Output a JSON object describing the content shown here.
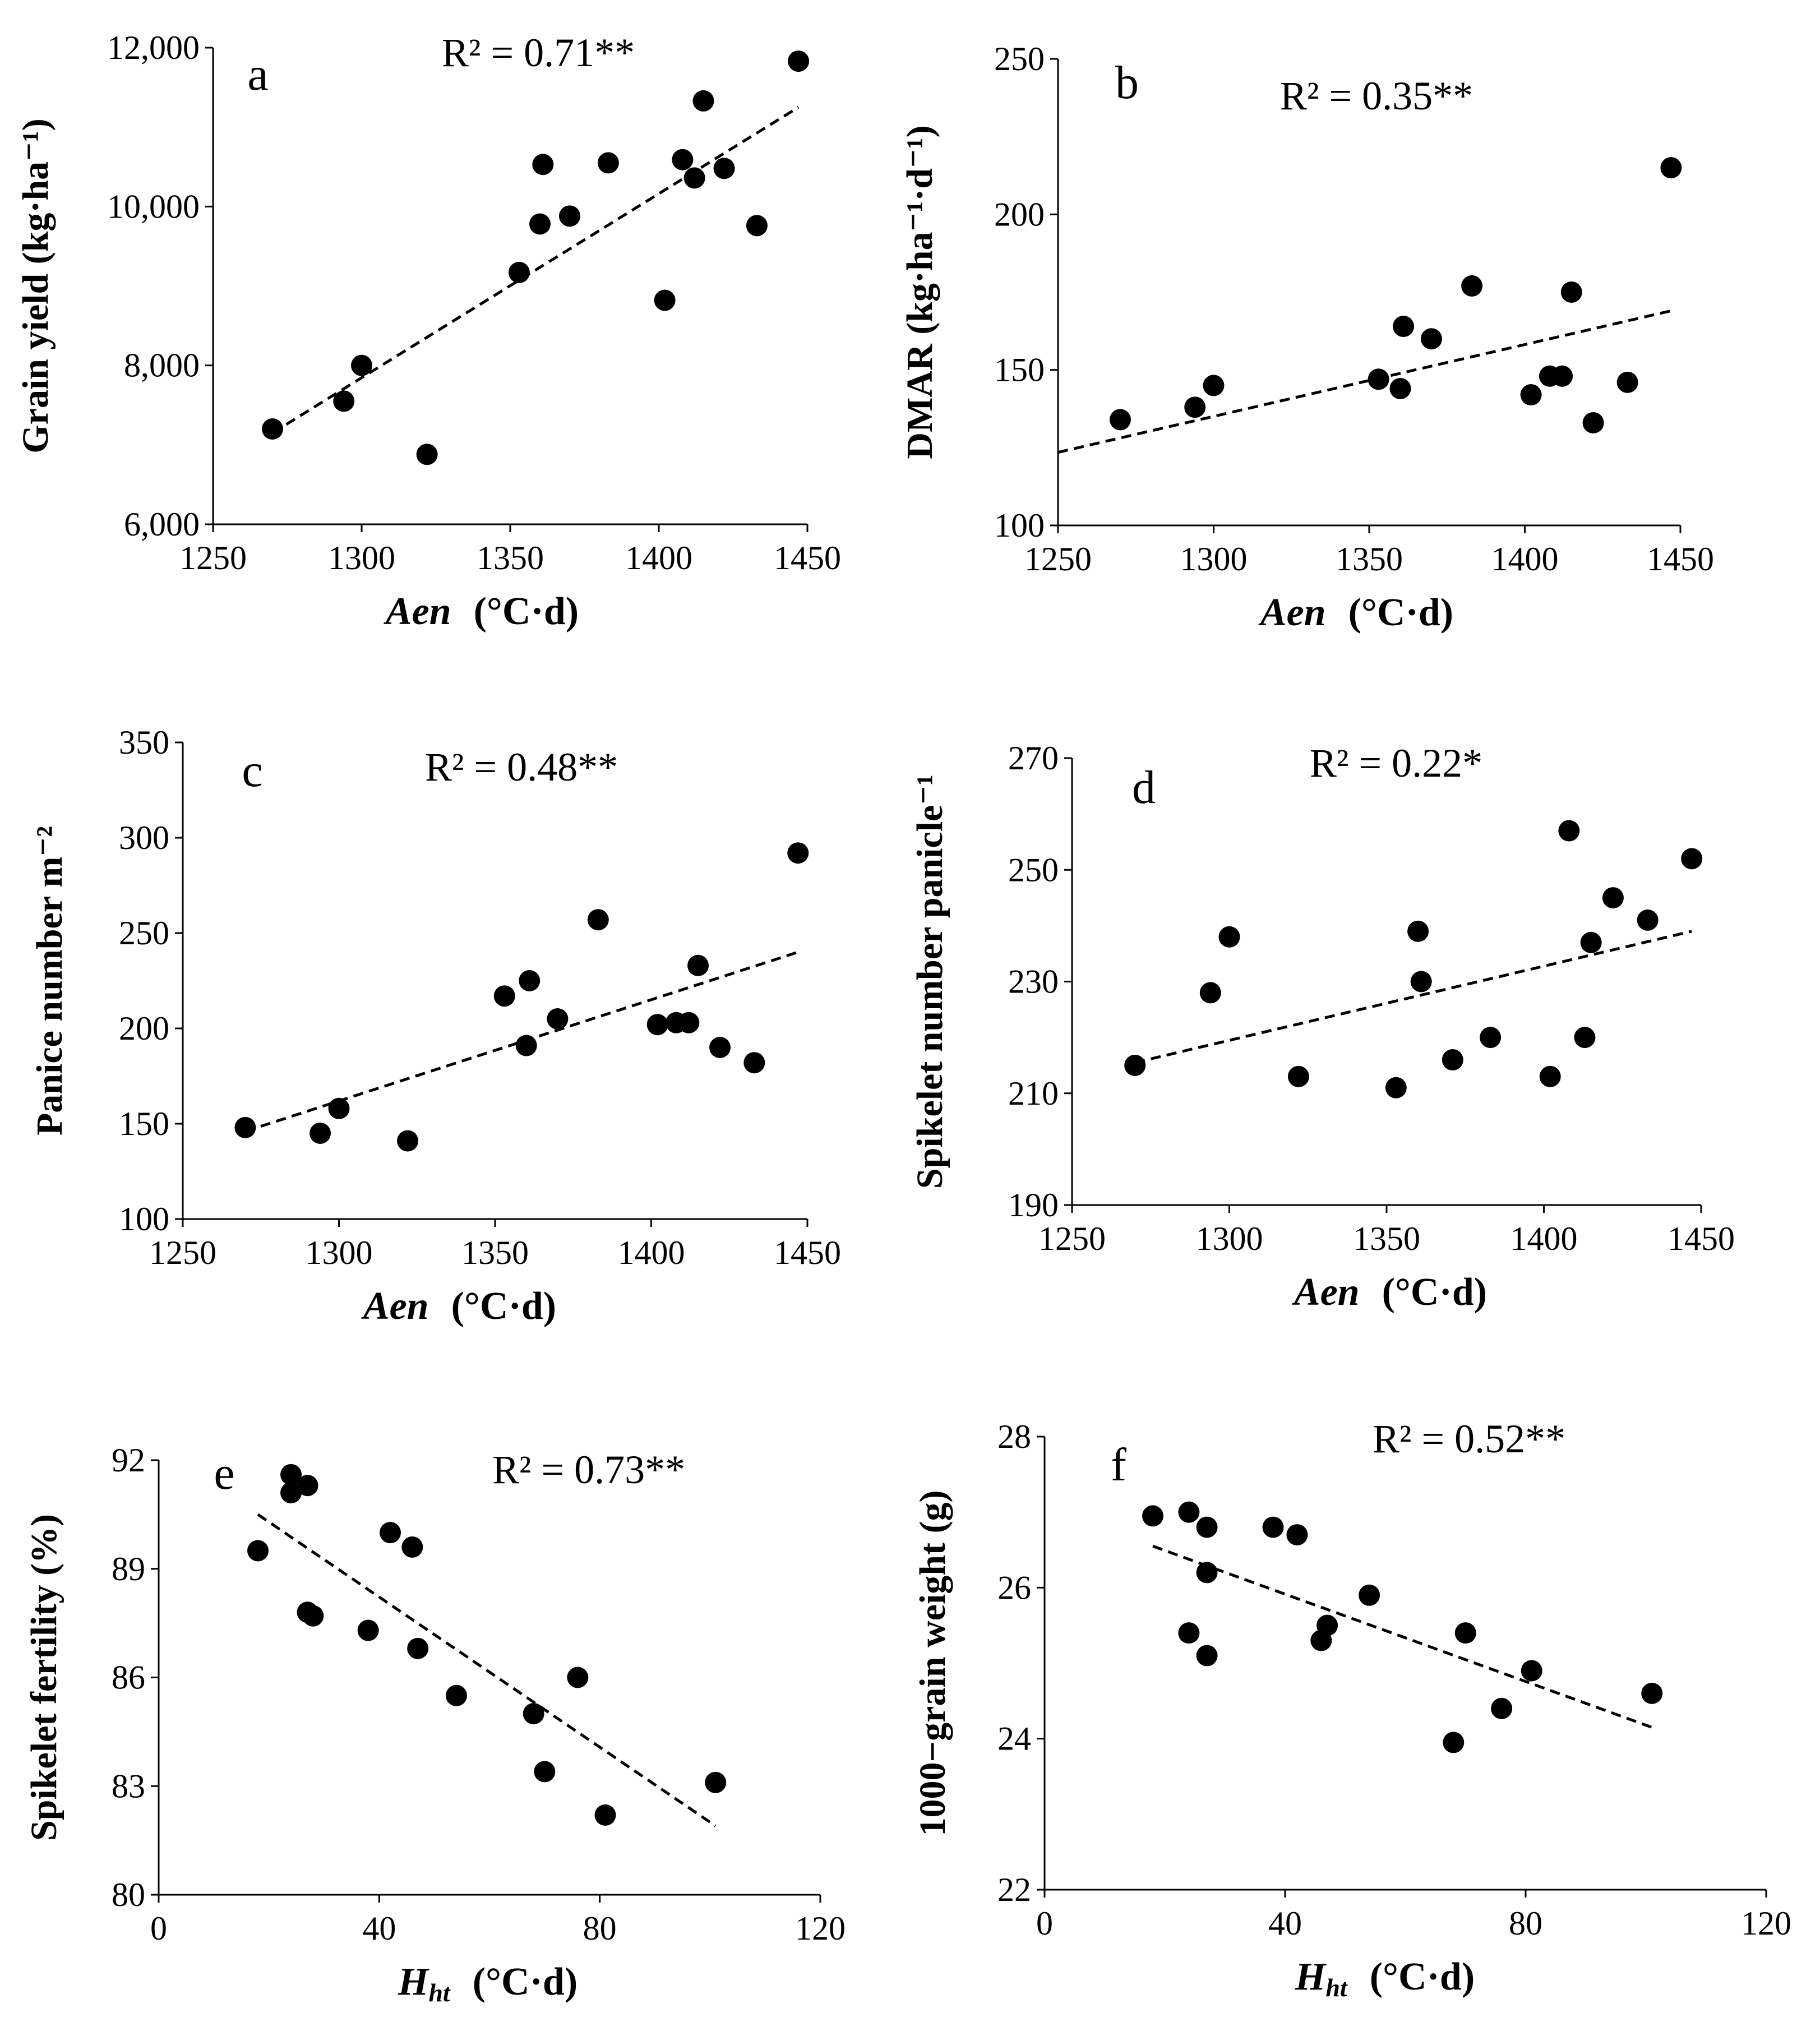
{
  "chart_data": [
    {
      "id": "a",
      "type": "scatter",
      "letter": "a",
      "r2": "R² = 0.71**",
      "xlabel_var": "Aen",
      "xlabel_sub": "",
      "xlabel_unit": "(°C·d)",
      "ylabel": "Grain yield   (kg·ha⁻¹)",
      "xlim": [
        1250,
        1450
      ],
      "ylim": [
        6000,
        12000
      ],
      "xticks": [
        1250,
        1300,
        1350,
        1400,
        1450
      ],
      "yticks": [
        6000,
        8000,
        10000,
        12000
      ],
      "ytick_labels": [
        "6,000",
        "8,000",
        "10,000",
        "12,000"
      ],
      "points": [
        [
          1270,
          7200
        ],
        [
          1294,
          7550
        ],
        [
          1300,
          8000
        ],
        [
          1322,
          6880
        ],
        [
          1353,
          9170
        ],
        [
          1360,
          9780
        ],
        [
          1361,
          10530
        ],
        [
          1370,
          9880
        ],
        [
          1383,
          10550
        ],
        [
          1402,
          8820
        ],
        [
          1408,
          10590
        ],
        [
          1412,
          10360
        ],
        [
          1415,
          11330
        ],
        [
          1422,
          10480
        ],
        [
          1433,
          9760
        ],
        [
          1447,
          11830
        ]
      ],
      "trend": [
        [
          1270,
          7150
        ],
        [
          1447,
          11250
        ]
      ]
    },
    {
      "id": "b",
      "type": "scatter",
      "letter": "b",
      "r2": "R² = 0.35**",
      "xlabel_var": "Aen",
      "xlabel_sub": "",
      "xlabel_unit": "(°C·d)",
      "ylabel": "DMAR   (kg·ha⁻¹·d⁻¹)",
      "xlim": [
        1250,
        1450
      ],
      "ylim": [
        100,
        250
      ],
      "xticks": [
        1250,
        1300,
        1350,
        1400,
        1450
      ],
      "yticks": [
        100,
        150,
        200,
        250
      ],
      "ytick_labels": [
        "100",
        "150",
        "200",
        "250"
      ],
      "points": [
        [
          1270,
          134
        ],
        [
          1294,
          138
        ],
        [
          1300,
          145
        ],
        [
          1353,
          147
        ],
        [
          1360,
          144
        ],
        [
          1361,
          164
        ],
        [
          1370,
          160
        ],
        [
          1383,
          177
        ],
        [
          1402,
          142
        ],
        [
          1408,
          148
        ],
        [
          1412,
          148
        ],
        [
          1415,
          175
        ],
        [
          1422,
          133
        ],
        [
          1433,
          146
        ],
        [
          1447,
          215
        ]
      ],
      "trend": [
        [
          1250,
          123.5
        ],
        [
          1447,
          169
        ]
      ]
    },
    {
      "id": "c",
      "type": "scatter",
      "letter": "c",
      "r2": "R² = 0.48**",
      "xlabel_var": "Aen",
      "xlabel_sub": "",
      "xlabel_unit": "(°C·d)",
      "ylabel": "Panice number  m⁻²",
      "xlim": [
        1250,
        1450
      ],
      "ylim": [
        100,
        350
      ],
      "xticks": [
        1250,
        1300,
        1350,
        1400,
        1450
      ],
      "yticks": [
        100,
        150,
        200,
        250,
        300,
        350
      ],
      "ytick_labels": [
        "100",
        "150",
        "200",
        "250",
        "300",
        "350"
      ],
      "points": [
        [
          1270,
          148
        ],
        [
          1294,
          145
        ],
        [
          1300,
          158
        ],
        [
          1322,
          141
        ],
        [
          1353,
          217
        ],
        [
          1360,
          191
        ],
        [
          1361,
          225
        ],
        [
          1370,
          205
        ],
        [
          1383,
          257
        ],
        [
          1402,
          202
        ],
        [
          1408,
          203
        ],
        [
          1412,
          203
        ],
        [
          1415,
          233
        ],
        [
          1422,
          190
        ],
        [
          1433,
          182
        ],
        [
          1447,
          292
        ]
      ],
      "trend": [
        [
          1270,
          146
        ],
        [
          1447,
          240
        ]
      ]
    },
    {
      "id": "d",
      "type": "scatter",
      "letter": "d",
      "r2": "R² = 0.22*",
      "xlabel_var": "Aen",
      "xlabel_sub": "",
      "xlabel_unit": "(°C·d)",
      "ylabel": "Spikelet number panicle⁻¹",
      "xlim": [
        1250,
        1450
      ],
      "ylim": [
        190,
        270
      ],
      "xticks": [
        1250,
        1300,
        1350,
        1400,
        1450
      ],
      "yticks": [
        190,
        210,
        230,
        250,
        270
      ],
      "ytick_labels": [
        "190",
        "210",
        "230",
        "250",
        "270"
      ],
      "points": [
        [
          1270,
          215
        ],
        [
          1294,
          228
        ],
        [
          1300,
          238
        ],
        [
          1322,
          213
        ],
        [
          1353,
          211
        ],
        [
          1360,
          239
        ],
        [
          1361,
          230
        ],
        [
          1371,
          216
        ],
        [
          1383,
          220
        ],
        [
          1402,
          213
        ],
        [
          1408,
          257
        ],
        [
          1413,
          220
        ],
        [
          1415,
          237
        ],
        [
          1422,
          245
        ],
        [
          1433,
          241
        ],
        [
          1447,
          252
        ]
      ],
      "trend": [
        [
          1270,
          215.5
        ],
        [
          1447,
          239
        ]
      ]
    },
    {
      "id": "e",
      "type": "scatter",
      "letter": "e",
      "r2": "R² = 0.73**",
      "xlabel_var": "H",
      "xlabel_sub": "ht",
      "xlabel_unit": "(°C·d)",
      "ylabel": "Spikelet fertility (%)",
      "xlim": [
        0,
        120
      ],
      "ylim": [
        80,
        92
      ],
      "xticks": [
        0,
        40,
        80,
        120
      ],
      "yticks": [
        80,
        83,
        86,
        89,
        92
      ],
      "ytick_labels": [
        "80",
        "83",
        "86",
        "89",
        "92"
      ],
      "points": [
        [
          18,
          89.5
        ],
        [
          24,
          91.6
        ],
        [
          24,
          91.1
        ],
        [
          27,
          91.3
        ],
        [
          27,
          87.8
        ],
        [
          28,
          87.7
        ],
        [
          38,
          87.3
        ],
        [
          42,
          90.0
        ],
        [
          46,
          89.6
        ],
        [
          47,
          86.8
        ],
        [
          54,
          85.5
        ],
        [
          68,
          85.0
        ],
        [
          70,
          83.4
        ],
        [
          76,
          86.0
        ],
        [
          81,
          82.2
        ],
        [
          101,
          83.1
        ]
      ],
      "trend": [
        [
          18,
          90.5
        ],
        [
          101,
          81.9
        ]
      ]
    },
    {
      "id": "f",
      "type": "scatter",
      "letter": "f",
      "r2": "R² = 0.52**",
      "xlabel_var": "H",
      "xlabel_sub": "ht",
      "xlabel_unit": "(°C·d)",
      "ylabel": "1000−grain weight   (g)",
      "xlim": [
        0,
        120
      ],
      "ylim": [
        22,
        28
      ],
      "xticks": [
        0,
        40,
        80,
        120
      ],
      "yticks": [
        22,
        24,
        26,
        28
      ],
      "ytick_labels": [
        "22",
        "24",
        "26",
        "28"
      ],
      "points": [
        [
          18,
          26.95
        ],
        [
          24,
          27.0
        ],
        [
          24,
          25.4
        ],
        [
          27,
          26.8
        ],
        [
          27,
          26.2
        ],
        [
          27,
          25.1
        ],
        [
          38,
          26.8
        ],
        [
          42,
          26.7
        ],
        [
          46,
          25.3
        ],
        [
          47,
          25.5
        ],
        [
          54,
          25.9
        ],
        [
          68,
          23.95
        ],
        [
          70,
          25.4
        ],
        [
          76,
          24.4
        ],
        [
          81,
          24.9
        ],
        [
          101,
          24.6
        ]
      ],
      "trend": [
        [
          18,
          26.55
        ],
        [
          101,
          24.15
        ]
      ]
    }
  ]
}
